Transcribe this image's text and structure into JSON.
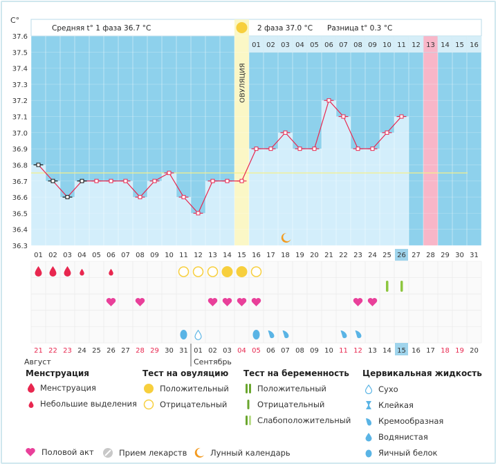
{
  "chart_data": {
    "type": "line",
    "unit_label": "C°",
    "y_ticks": [
      "37.6",
      "37.5",
      "37.4",
      "37.3",
      "37.2",
      "37.1",
      "37.0",
      "36.9",
      "36.8",
      "36.7",
      "36.6",
      "36.5",
      "36.4",
      "36.3"
    ],
    "ylim": [
      36.3,
      37.6
    ],
    "cycle_days": [
      "01",
      "02",
      "03",
      "04",
      "05",
      "06",
      "07",
      "08",
      "09",
      "10",
      "11",
      "12",
      "13",
      "14",
      "15",
      "16",
      "17",
      "18",
      "19",
      "20",
      "21",
      "22",
      "23",
      "24",
      "25",
      "26",
      "27",
      "28",
      "29",
      "30",
      "31"
    ],
    "current_cycle_day": "26",
    "calendar_dates": [
      "21",
      "22",
      "23",
      "24",
      "25",
      "26",
      "27",
      "28",
      "29",
      "30",
      "31",
      "01",
      "02",
      "03",
      "04",
      "05",
      "06",
      "07",
      "08",
      "09",
      "10",
      "11",
      "12",
      "13",
      "14",
      "15",
      "16",
      "17",
      "18",
      "19",
      "20"
    ],
    "weekend_date_indices": [
      0,
      1,
      2,
      7,
      8,
      14,
      15,
      21,
      22,
      28,
      29
    ],
    "current_date_index": 25,
    "month_labels": [
      "Август",
      "Сентябрь"
    ],
    "temperatures": [
      36.8,
      36.7,
      36.6,
      36.7,
      36.7,
      36.7,
      36.7,
      36.6,
      36.7,
      36.75,
      36.6,
      36.5,
      36.7,
      36.7,
      36.7,
      36.9,
      36.9,
      37.0,
      36.9,
      36.9,
      37.2,
      37.1,
      36.9,
      36.9,
      37.0,
      37.1
    ],
    "coverline": 36.75,
    "ovulation_day_index": 14,
    "ovulation_label": "ОВУЛЯЦИЯ",
    "phase1_label": "Средняя t° 1 фаза 36.7 °C",
    "phase2_label": "2 фаза 37.0 °C",
    "diff_label": "Разница t° 0.3 °C",
    "phase2_days": [
      "01",
      "02",
      "03",
      "04",
      "05",
      "06",
      "07",
      "08",
      "09",
      "10",
      "11",
      "12",
      "13",
      "14",
      "15",
      "16"
    ],
    "highlight_phase2_day": "13",
    "moon_day_index": 17,
    "menstruation_heavy_days": [
      0,
      1,
      2
    ],
    "menstruation_light_days": [
      3,
      5
    ],
    "ovulation_test_negative_days": [
      10,
      11,
      12,
      15
    ],
    "ovulation_test_positive_days": [
      13,
      14
    ],
    "pregnancy_weak_positive_days": [
      24,
      25
    ],
    "intercourse_days": [
      5,
      7,
      12,
      13,
      14,
      15,
      22,
      23
    ],
    "egg_white_days": [
      10,
      15
    ],
    "dry_days": [
      11
    ],
    "creamy_days": [
      16,
      17,
      21,
      22
    ],
    "colors": {
      "plot_bg": "#8ed1ec",
      "bar_fill": "#d3eefb",
      "line": "#e8274f",
      "ovulation_band": "#fbf7c6",
      "pink_col": "#f8b6c8",
      "drop_red": "#e8274f",
      "heart": "#e9409a",
      "ovu_yellow": "#f7cf3d",
      "preg_green": "#8dc63f",
      "fluid_blue": "#5ab4e5",
      "moon": "#f39a1f",
      "weekend_red": "#e8274f"
    }
  },
  "legend": {
    "menstruation": {
      "title": "Менструация",
      "items": [
        "Менструация",
        "Небольшие выделения"
      ]
    },
    "ovulation_test": {
      "title": "Тест на овуляцию",
      "items": [
        "Положительный",
        "Отрицательный"
      ]
    },
    "pregnancy_test": {
      "title": "Тест на беременность",
      "items": [
        "Положительный",
        "Отрицательный",
        "Слабоположительный"
      ]
    },
    "cervical": {
      "title": "Цервикальная жидкость",
      "items": [
        "Сухо",
        "Клейкая",
        "Кремообразная",
        "Водянистая",
        "Яичный белок"
      ]
    },
    "bottom": [
      "Половой акт",
      "Прием лекарств",
      "Лунный календарь"
    ]
  }
}
